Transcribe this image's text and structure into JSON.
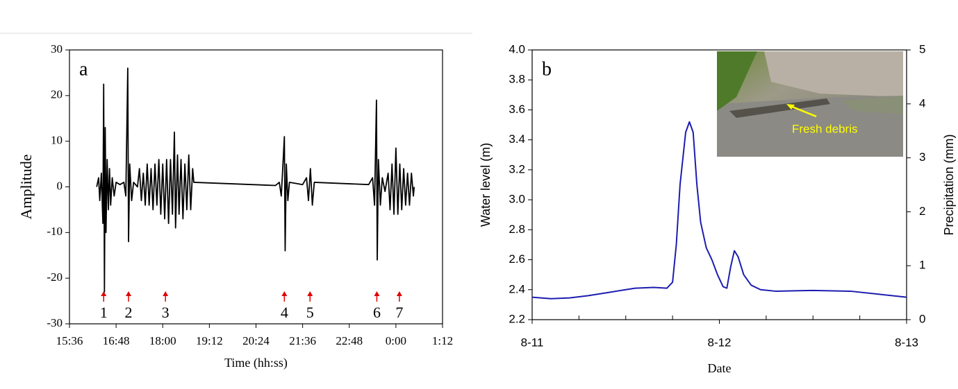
{
  "chart_data": [
    {
      "type": "line",
      "label": "a",
      "xlabel": "Time (hh:ss)",
      "ylabel": "Amplitude",
      "xlim": [
        15.6,
        25.2
      ],
      "xticks": [
        {
          "value": 15.6,
          "label": "15:36"
        },
        {
          "value": 16.8,
          "label": "16:48"
        },
        {
          "value": 18.0,
          "label": "18:00"
        },
        {
          "value": 19.2,
          "label": "19:12"
        },
        {
          "value": 20.4,
          "label": "20:24"
        },
        {
          "value": 21.6,
          "label": "21:36"
        },
        {
          "value": 22.8,
          "label": "22:48"
        },
        {
          "value": 24.0,
          "label": "0:00"
        },
        {
          "value": 25.2,
          "label": "1:12"
        }
      ],
      "ylim": [
        -30,
        30
      ],
      "yticks": [
        30,
        20,
        10,
        0,
        -10,
        -20,
        -30
      ],
      "series": [
        {
          "color": "#000000",
          "x": [
            16.3,
            16.35,
            16.38,
            16.42,
            16.46,
            16.48,
            16.5,
            16.52,
            16.54,
            16.57,
            16.6,
            16.63,
            16.66,
            16.7,
            16.75,
            16.8,
            16.9,
            17.0,
            17.05,
            17.1,
            17.12,
            17.15,
            17.2,
            17.25,
            17.35,
            17.4,
            17.45,
            17.5,
            17.55,
            17.6,
            17.65,
            17.7,
            17.75,
            17.8,
            17.85,
            17.9,
            17.95,
            18.0,
            18.05,
            18.1,
            18.15,
            18.2,
            18.25,
            18.3,
            18.33,
            18.38,
            18.42,
            18.47,
            18.52,
            18.57,
            18.62,
            18.67,
            18.72,
            18.77,
            18.8,
            20.9,
            21.0,
            21.05,
            21.1,
            21.13,
            21.15,
            21.18,
            21.22,
            21.26,
            21.6,
            21.7,
            21.75,
            21.8,
            21.85,
            21.9,
            23.3,
            23.4,
            23.45,
            23.5,
            23.52,
            23.55,
            23.6,
            23.65,
            23.72,
            23.8,
            23.85,
            23.9,
            23.95,
            24.0,
            24.05,
            24.1,
            24.15,
            24.2,
            24.25,
            24.3,
            24.35,
            24.4,
            24.45,
            24.47
          ],
          "values": [
            0,
            2,
            -3,
            3,
            -8,
            22.5,
            -23,
            13,
            -10,
            6,
            -5,
            4,
            -4,
            2,
            -2,
            1,
            0.5,
            1,
            -2,
            26,
            -12,
            5,
            -3,
            1,
            0,
            4,
            -3,
            3,
            -4,
            5,
            -4,
            4,
            -5,
            5,
            -4,
            6,
            -6,
            5,
            -7,
            6,
            -8,
            6,
            -6,
            12,
            -9,
            7,
            -6,
            6,
            -7,
            5,
            -5,
            7,
            -5,
            4,
            1,
            0.3,
            1,
            -2,
            6,
            11,
            -14,
            5,
            -3,
            1,
            0.5,
            2,
            -3,
            4,
            -4,
            1,
            0.5,
            2,
            -4,
            19,
            -16,
            6,
            -4,
            2,
            -1,
            3,
            -5,
            5,
            -6,
            8.5,
            -6,
            5,
            -5,
            4,
            -4,
            3,
            -4,
            3,
            -2,
            0
          ]
        }
      ],
      "events": {
        "color": "#e00000",
        "x": [
          16.48,
          17.12,
          18.07,
          21.13,
          21.79,
          23.51,
          24.09
        ],
        "labels": [
          "1",
          "2",
          "3",
          "4",
          "5",
          "6",
          "7"
        ]
      }
    },
    {
      "type": "line",
      "label": "b",
      "xlabel": "Date",
      "ylabel": "Water level (m)",
      "y2label": "Precipitation (mm)",
      "annotation": "Fresh debris",
      "xlim": [
        11,
        13
      ],
      "xticks": [
        {
          "value": 11,
          "label": "8-11"
        },
        {
          "value": 12,
          "label": "8-12"
        },
        {
          "value": 13,
          "label": "8-13"
        }
      ],
      "x_minor_ticks": [
        11.25,
        11.5,
        11.75,
        12.25,
        12.5,
        12.75
      ],
      "ylim": [
        2.2,
        4.0
      ],
      "yticks": [
        2.2,
        2.4,
        2.6,
        2.8,
        {
          "value": 3.0,
          "label": "3.0"
        },
        3.2,
        3.4,
        3.6,
        3.8,
        {
          "value": 4.0,
          "label": "4.0"
        }
      ],
      "y2lim": [
        0,
        5
      ],
      "y2ticks": [
        0,
        1,
        2,
        3,
        4,
        5
      ],
      "series": [
        {
          "color": "#1c1cb0",
          "x": [
            11.0,
            11.1,
            11.2,
            11.3,
            11.4,
            11.5,
            11.55,
            11.65,
            11.72,
            11.75,
            11.77,
            11.79,
            11.82,
            11.84,
            11.86,
            11.88,
            11.9,
            11.93,
            11.96,
            11.99,
            12.02,
            12.04,
            12.06,
            12.08,
            12.1,
            12.13,
            12.17,
            12.22,
            12.3,
            12.5,
            12.7,
            12.85,
            13.0
          ],
          "values": [
            2.35,
            2.34,
            2.345,
            2.36,
            2.38,
            2.4,
            2.41,
            2.415,
            2.41,
            2.45,
            2.7,
            3.1,
            3.45,
            3.52,
            3.45,
            3.1,
            2.85,
            2.68,
            2.6,
            2.5,
            2.42,
            2.41,
            2.55,
            2.66,
            2.62,
            2.5,
            2.43,
            2.4,
            2.39,
            2.395,
            2.39,
            2.37,
            2.35
          ]
        }
      ]
    }
  ]
}
